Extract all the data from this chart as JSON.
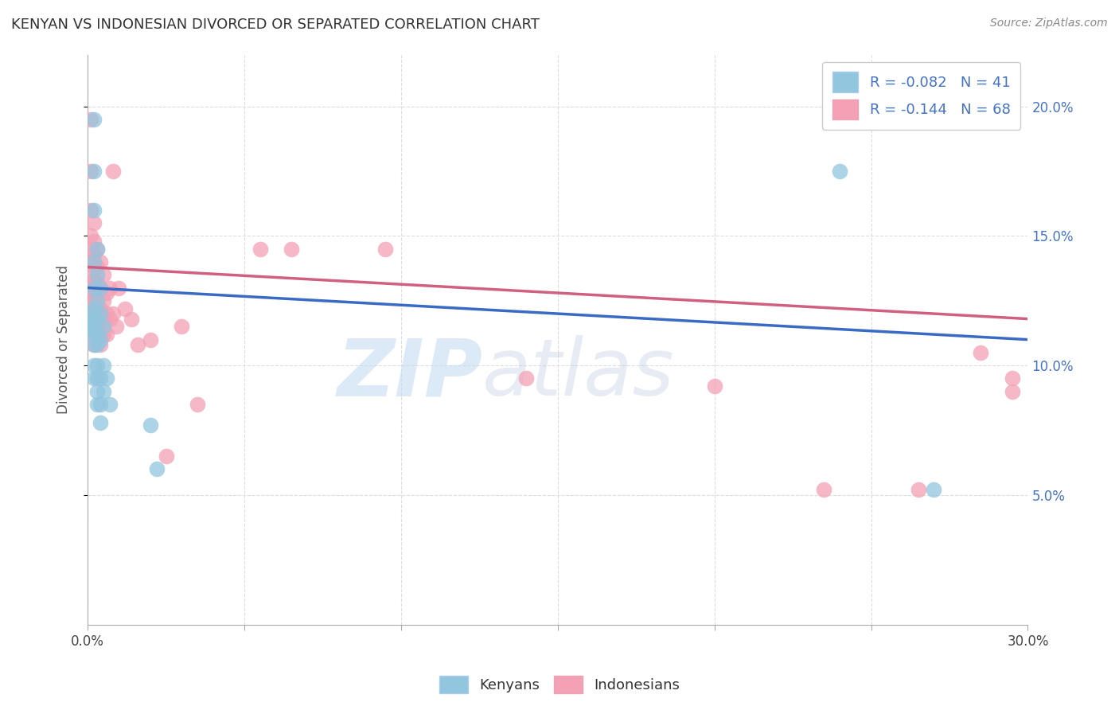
{
  "title": "KENYAN VS INDONESIAN DIVORCED OR SEPARATED CORRELATION CHART",
  "source": "Source: ZipAtlas.com",
  "ylabel": "Divorced or Separated",
  "legend_entries": [
    {
      "label": "R = -0.082   N = 41"
    },
    {
      "label": "R = -0.144   N = 68"
    }
  ],
  "legend_labels": [
    "Kenyans",
    "Indonesians"
  ],
  "xlim": [
    0.0,
    0.3
  ],
  "ylim": [
    0.0,
    0.22
  ],
  "xticks": [
    0.0,
    0.05,
    0.1,
    0.15,
    0.2,
    0.25,
    0.3
  ],
  "yticks": [
    0.05,
    0.1,
    0.15,
    0.2
  ],
  "ytick_labels": [
    "5.0%",
    "10.0%",
    "15.0%",
    "20.0%"
  ],
  "blue_scatter": [
    [
      0.001,
      0.12
    ],
    [
      0.001,
      0.118
    ],
    [
      0.001,
      0.116
    ],
    [
      0.001,
      0.114
    ],
    [
      0.002,
      0.195
    ],
    [
      0.002,
      0.175
    ],
    [
      0.002,
      0.16
    ],
    [
      0.002,
      0.14
    ],
    [
      0.002,
      0.13
    ],
    [
      0.002,
      0.122
    ],
    [
      0.002,
      0.118
    ],
    [
      0.002,
      0.115
    ],
    [
      0.002,
      0.112
    ],
    [
      0.002,
      0.108
    ],
    [
      0.002,
      0.1
    ],
    [
      0.002,
      0.095
    ],
    [
      0.003,
      0.145
    ],
    [
      0.003,
      0.135
    ],
    [
      0.003,
      0.125
    ],
    [
      0.003,
      0.118
    ],
    [
      0.003,
      0.112
    ],
    [
      0.003,
      0.108
    ],
    [
      0.003,
      0.1
    ],
    [
      0.003,
      0.095
    ],
    [
      0.003,
      0.09
    ],
    [
      0.003,
      0.085
    ],
    [
      0.004,
      0.13
    ],
    [
      0.004,
      0.12
    ],
    [
      0.004,
      0.11
    ],
    [
      0.004,
      0.095
    ],
    [
      0.004,
      0.085
    ],
    [
      0.004,
      0.078
    ],
    [
      0.005,
      0.115
    ],
    [
      0.005,
      0.1
    ],
    [
      0.005,
      0.09
    ],
    [
      0.006,
      0.095
    ],
    [
      0.007,
      0.085
    ],
    [
      0.02,
      0.077
    ],
    [
      0.022,
      0.06
    ],
    [
      0.24,
      0.175
    ],
    [
      0.27,
      0.052
    ]
  ],
  "pink_scatter": [
    [
      0.001,
      0.195
    ],
    [
      0.001,
      0.175
    ],
    [
      0.001,
      0.16
    ],
    [
      0.001,
      0.15
    ],
    [
      0.001,
      0.145
    ],
    [
      0.001,
      0.14
    ],
    [
      0.001,
      0.135
    ],
    [
      0.001,
      0.13
    ],
    [
      0.001,
      0.128
    ],
    [
      0.001,
      0.125
    ],
    [
      0.001,
      0.122
    ],
    [
      0.001,
      0.12
    ],
    [
      0.002,
      0.155
    ],
    [
      0.002,
      0.148
    ],
    [
      0.002,
      0.143
    ],
    [
      0.002,
      0.138
    ],
    [
      0.002,
      0.133
    ],
    [
      0.002,
      0.13
    ],
    [
      0.002,
      0.126
    ],
    [
      0.002,
      0.122
    ],
    [
      0.002,
      0.118
    ],
    [
      0.002,
      0.115
    ],
    [
      0.002,
      0.112
    ],
    [
      0.002,
      0.108
    ],
    [
      0.003,
      0.145
    ],
    [
      0.003,
      0.138
    ],
    [
      0.003,
      0.132
    ],
    [
      0.003,
      0.128
    ],
    [
      0.003,
      0.122
    ],
    [
      0.003,
      0.118
    ],
    [
      0.003,
      0.115
    ],
    [
      0.003,
      0.112
    ],
    [
      0.004,
      0.14
    ],
    [
      0.004,
      0.13
    ],
    [
      0.004,
      0.122
    ],
    [
      0.004,
      0.118
    ],
    [
      0.004,
      0.112
    ],
    [
      0.004,
      0.108
    ],
    [
      0.005,
      0.135
    ],
    [
      0.005,
      0.125
    ],
    [
      0.005,
      0.118
    ],
    [
      0.005,
      0.112
    ],
    [
      0.006,
      0.128
    ],
    [
      0.006,
      0.12
    ],
    [
      0.006,
      0.112
    ],
    [
      0.007,
      0.13
    ],
    [
      0.007,
      0.118
    ],
    [
      0.008,
      0.175
    ],
    [
      0.008,
      0.12
    ],
    [
      0.009,
      0.115
    ],
    [
      0.01,
      0.13
    ],
    [
      0.012,
      0.122
    ],
    [
      0.014,
      0.118
    ],
    [
      0.016,
      0.108
    ],
    [
      0.02,
      0.11
    ],
    [
      0.025,
      0.065
    ],
    [
      0.03,
      0.115
    ],
    [
      0.035,
      0.085
    ],
    [
      0.055,
      0.145
    ],
    [
      0.065,
      0.145
    ],
    [
      0.095,
      0.145
    ],
    [
      0.14,
      0.095
    ],
    [
      0.2,
      0.092
    ],
    [
      0.235,
      0.052
    ],
    [
      0.265,
      0.052
    ],
    [
      0.285,
      0.105
    ],
    [
      0.295,
      0.095
    ],
    [
      0.295,
      0.09
    ]
  ],
  "blue_line": {
    "x_start": 0.0,
    "y_start": 0.13,
    "x_end": 0.3,
    "y_end": 0.11
  },
  "pink_line": {
    "x_start": 0.0,
    "y_start": 0.138,
    "x_end": 0.3,
    "y_end": 0.118
  },
  "blue_color": "#92c5de",
  "pink_color": "#f4a0b5",
  "blue_line_color": "#3a6bc4",
  "pink_line_color": "#d06080",
  "watermark_zip": "ZIP",
  "watermark_atlas": "atlas",
  "background_color": "#ffffff",
  "grid_color": "#dddddd"
}
